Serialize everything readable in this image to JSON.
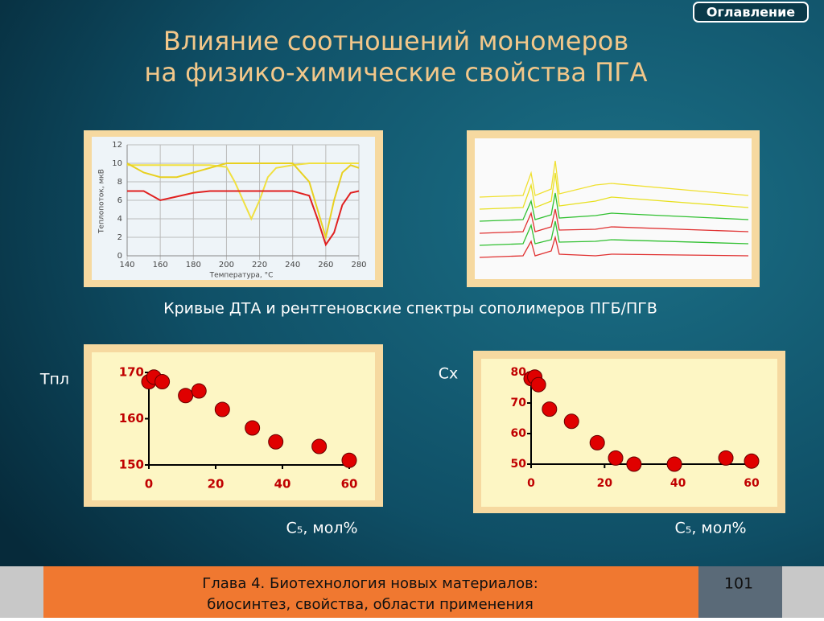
{
  "title_lines": [
    "Влияние соотношений мономеров",
    "на физико-химические свойства ПГА"
  ],
  "toc_button": "Оглавление",
  "caption": "Кривые ДТА и рентгеновские спектры сополимеров ПГБ/ПГВ",
  "footer_lines": [
    "Глава 4. Биотехнология новых материалов:",
    "биосинтез, свойства, области применения"
  ],
  "page_number": "101",
  "chart_data": [
    {
      "type": "line",
      "x_label": "Температура, °C",
      "y_label": "Теплопоток, мкВ",
      "x": [
        140,
        150,
        160,
        170,
        180,
        190,
        200,
        205,
        210,
        215,
        220,
        225,
        230,
        240,
        250,
        255,
        260,
        265,
        270,
        275,
        280
      ],
      "series": [
        {
          "color": "#f0e040",
          "values": [
            9.8,
            9.8,
            9.8,
            9.8,
            9.8,
            9.8,
            9.6,
            8,
            6,
            4,
            6,
            8.5,
            9.5,
            9.8,
            10,
            10,
            10,
            10,
            10,
            10,
            10
          ]
        },
        {
          "color": "#e8d020",
          "values": [
            10,
            9,
            8.5,
            8.5,
            9,
            9.5,
            10,
            10,
            10,
            10,
            10,
            10,
            10,
            10,
            8,
            5,
            2,
            6,
            9,
            9.8,
            9.5
          ]
        },
        {
          "color": "#e02020",
          "values": [
            7,
            7,
            6,
            6.4,
            6.8,
            7,
            7,
            7,
            7,
            7,
            7,
            7,
            7,
            7,
            6.5,
            4,
            1.2,
            2.5,
            5.5,
            6.8,
            7
          ]
        }
      ],
      "xlim": [
        140,
        280
      ],
      "xticks": [
        140,
        160,
        180,
        200,
        220,
        240,
        260,
        280
      ],
      "ylim": [
        0,
        12
      ],
      "yticks": [
        0,
        2,
        4,
        6,
        8,
        10,
        12
      ],
      "grid": true
    },
    {
      "type": "scatter",
      "y_label": "Tпл",
      "x_label": "C₅, мол%",
      "color": "#e00000",
      "x": [
        0,
        1.5,
        4,
        11,
        15,
        22,
        31,
        38,
        51,
        60
      ],
      "values": [
        168,
        169,
        168,
        165,
        166,
        162,
        158,
        155,
        154,
        151
      ],
      "xlim": [
        0,
        60
      ],
      "xticks": [
        0,
        20,
        40,
        60
      ],
      "ylim": [
        150,
        170
      ],
      "yticks": [
        150,
        160,
        170
      ]
    },
    {
      "type": "scatter",
      "y_label": "Cx",
      "x_label": "C₅, мол%",
      "color": "#e00000",
      "x": [
        0,
        1,
        2,
        5,
        11,
        18,
        23,
        28,
        39,
        53,
        60
      ],
      "values": [
        78,
        78.5,
        76,
        68,
        64,
        57,
        52,
        50,
        50,
        52,
        51
      ],
      "xlim": [
        0,
        60
      ],
      "xticks": [
        0,
        20,
        40,
        60
      ],
      "ylim": [
        50,
        80
      ],
      "yticks": [
        50,
        60,
        70,
        80
      ]
    }
  ]
}
